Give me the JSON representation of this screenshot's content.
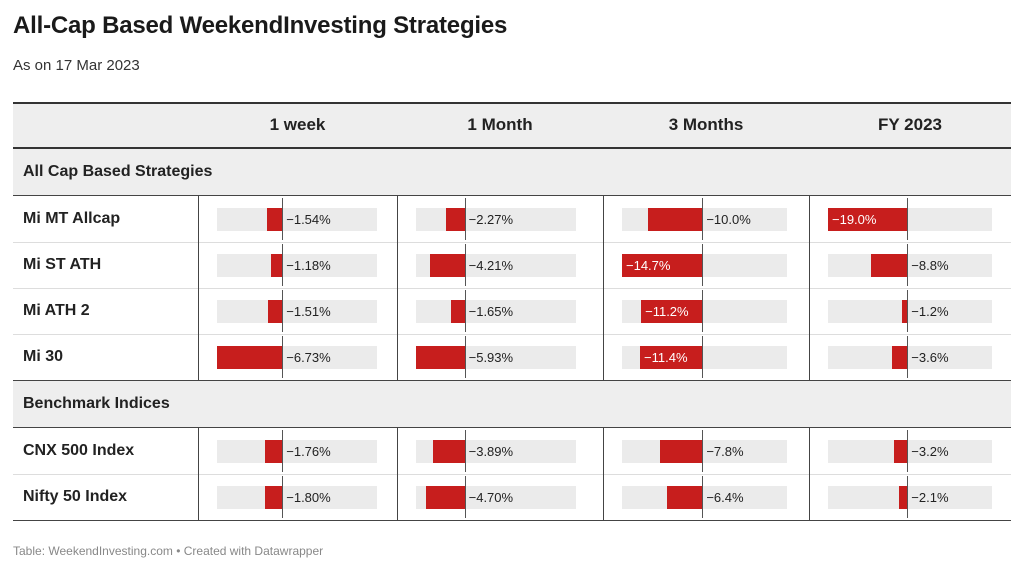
{
  "title": "All-Cap Based WeekendInvesting Strategies",
  "subtitle": "As on 17 Mar 2023",
  "source": "Table: WeekendInvesting.com • Created with Datawrapper",
  "colors": {
    "bar": "#c71e1d",
    "track": "#ebebeb",
    "section_bg": "#eeeeee"
  },
  "chart_data": {
    "type": "table",
    "columns": [
      "1 week",
      "1 Month",
      "3 Months",
      "FY 2023"
    ],
    "sections": [
      {
        "label": "All Cap Based Strategies",
        "rows": [
          {
            "name": "Mi MT Allcap",
            "values": [
              -1.54,
              -2.27,
              -10.0,
              -19.0
            ],
            "labels": [
              "−1.54%",
              "−2.27%",
              "−10.0%",
              "−19.0%"
            ]
          },
          {
            "name": "Mi ST ATH",
            "values": [
              -1.18,
              -4.21,
              -14.7,
              -8.8
            ],
            "labels": [
              "−1.18%",
              "−4.21%",
              "−14.7%",
              "−8.8%"
            ]
          },
          {
            "name": "Mi ATH 2",
            "values": [
              -1.51,
              -1.65,
              -11.2,
              -1.2
            ],
            "labels": [
              "−1.51%",
              "−1.65%",
              "−11.2%",
              "−1.2%"
            ]
          },
          {
            "name": "Mi 30",
            "values": [
              -6.73,
              -5.93,
              -11.4,
              -3.6
            ],
            "labels": [
              "−6.73%",
              "−5.93%",
              "−11.4%",
              "−3.6%"
            ]
          }
        ]
      },
      {
        "label": "Benchmark Indices",
        "rows": [
          {
            "name": "CNX 500 Index",
            "values": [
              -1.76,
              -3.89,
              -7.8,
              -3.2
            ],
            "labels": [
              "−1.76%",
              "−3.89%",
              "−7.8%",
              "−3.2%"
            ]
          },
          {
            "name": "Nifty 50 Index",
            "values": [
              -1.8,
              -4.7,
              -6.4,
              -2.1
            ],
            "labels": [
              "−1.80%",
              "−4.70%",
              "−6.4%",
              "−2.1%"
            ]
          }
        ]
      }
    ],
    "column_ranges": [
      [
        -6.73,
        9.77
      ],
      [
        -5.93,
        13.58
      ],
      [
        -14.7,
        15.5
      ],
      [
        -19.0,
        20.3
      ]
    ],
    "inside_labels": [
      [
        false,
        false,
        false,
        true
      ],
      [
        false,
        false,
        true,
        false
      ],
      [
        false,
        false,
        true,
        false
      ],
      [
        false,
        false,
        true,
        false
      ],
      [
        false,
        false,
        false,
        false
      ],
      [
        false,
        false,
        false,
        false
      ]
    ]
  }
}
